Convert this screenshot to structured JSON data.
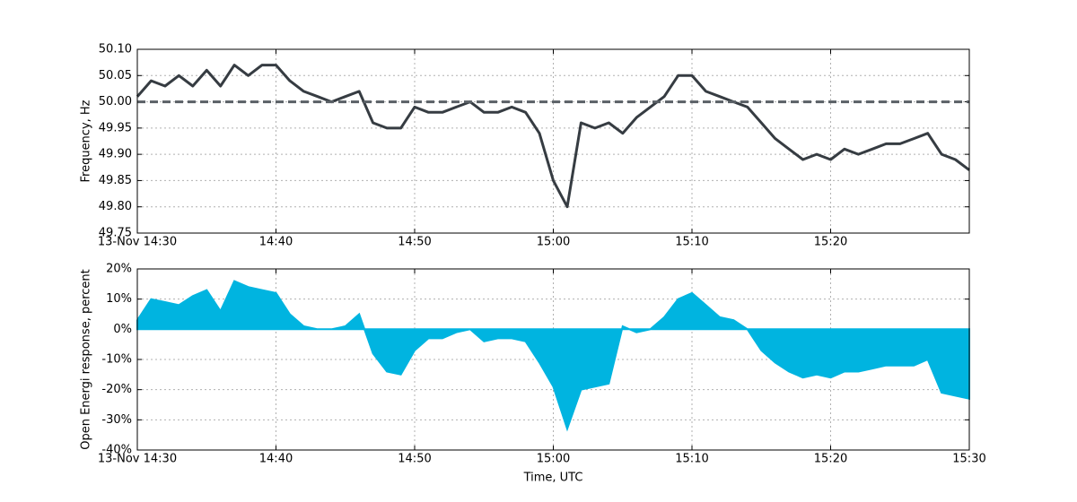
{
  "chart_data": [
    {
      "type": "line",
      "ylabel": "Frequency, Hz",
      "x": [
        "14:30",
        "14:31",
        "14:32",
        "14:33",
        "14:34",
        "14:35",
        "14:36",
        "14:37",
        "14:38",
        "14:39",
        "14:40",
        "14:41",
        "14:42",
        "14:43",
        "14:44",
        "14:45",
        "14:46",
        "14:47",
        "14:48",
        "14:49",
        "14:50",
        "14:51",
        "14:52",
        "14:53",
        "14:54",
        "14:55",
        "14:56",
        "14:57",
        "14:58",
        "14:59",
        "15:00",
        "15:01",
        "15:02",
        "15:03",
        "15:04",
        "15:05",
        "15:06",
        "15:07",
        "15:08",
        "15:09",
        "15:10",
        "15:11",
        "15:12",
        "15:13",
        "15:14",
        "15:15",
        "15:16",
        "15:17",
        "15:18",
        "15:19",
        "15:20",
        "15:21",
        "15:22",
        "15:23",
        "15:24",
        "15:25",
        "15:26",
        "15:27",
        "15:28",
        "15:29",
        "15:30"
      ],
      "series": [
        {
          "color": "#363c42",
          "values": [
            50.01,
            50.04,
            50.03,
            50.05,
            50.03,
            50.06,
            50.03,
            50.07,
            50.05,
            50.07,
            50.07,
            50.04,
            50.02,
            50.01,
            50.0,
            50.01,
            50.02,
            49.96,
            49.95,
            49.95,
            49.99,
            49.98,
            49.98,
            49.99,
            50.0,
            49.98,
            49.98,
            49.99,
            49.98,
            49.94,
            49.85,
            49.8,
            49.96,
            49.95,
            49.96,
            49.94,
            49.97,
            49.99,
            50.01,
            50.05,
            50.05,
            50.02,
            50.01,
            50.0,
            49.99,
            49.96,
            49.93,
            49.91,
            49.89,
            49.9,
            49.89,
            49.91,
            49.9,
            49.91,
            49.92,
            49.92,
            49.93,
            49.94,
            49.9,
            49.89,
            49.87
          ]
        }
      ],
      "reference_line": {
        "value": 50,
        "color": "#5a6066"
      },
      "xlim": [
        "14:30",
        "15:30"
      ],
      "xticks": [
        {
          "value": "14:30",
          "label": "13-Nov 14:30"
        },
        "14:40",
        "14:50",
        "15:00",
        "15:10",
        "15:20"
      ],
      "ylim": [
        49.75,
        50.1
      ],
      "yticks": [
        49.75,
        {
          "value": 49.8,
          "label": "49.80"
        },
        49.85,
        {
          "value": 49.9,
          "label": "49.90"
        },
        49.95,
        {
          "value": 50,
          "label": "50.00"
        },
        50.05,
        {
          "value": 50.1,
          "label": "50.10"
        }
      ],
      "grid": true
    },
    {
      "type": "area",
      "xlabel": "Time, UTC",
      "ylabel": "Open Energi response, percent",
      "x": [
        "14:30",
        "14:31",
        "14:32",
        "14:33",
        "14:34",
        "14:35",
        "14:36",
        "14:37",
        "14:38",
        "14:39",
        "14:40",
        "14:41",
        "14:42",
        "14:43",
        "14:44",
        "14:45",
        "14:46",
        "14:47",
        "14:48",
        "14:49",
        "14:50",
        "14:51",
        "14:52",
        "14:53",
        "14:54",
        "14:55",
        "14:56",
        "14:57",
        "14:58",
        "14:59",
        "15:00",
        "15:01",
        "15:02",
        "15:03",
        "15:04",
        "15:05",
        "15:06",
        "15:07",
        "15:08",
        "15:09",
        "15:10",
        "15:11",
        "15:12",
        "15:13",
        "15:14",
        "15:15",
        "15:16",
        "15:17",
        "15:18",
        "15:19",
        "15:20",
        "15:21",
        "15:22",
        "15:23",
        "15:24",
        "15:25",
        "15:26",
        "15:27",
        "15:28",
        "15:29",
        "15:30"
      ],
      "series": [
        {
          "color": "#00b4e0",
          "values": [
            3,
            10,
            9,
            8,
            11,
            13,
            6,
            16,
            14,
            13,
            12,
            5,
            1,
            0,
            0,
            1,
            5,
            -8,
            -14,
            -15,
            -7,
            -3,
            -3,
            -1,
            0,
            -4,
            -3,
            -3,
            -4,
            -11,
            -19,
            -33,
            -20,
            -19,
            -18,
            1,
            -1,
            0,
            4,
            10,
            12,
            8,
            4,
            3,
            0,
            -7,
            -11,
            -14,
            -16,
            -15,
            -16,
            -14,
            -14,
            -13,
            -12,
            -12,
            -12,
            -10,
            -21,
            -22,
            -23
          ]
        }
      ],
      "xlim": [
        "14:30",
        "15:30"
      ],
      "xticks": [
        {
          "value": "14:30",
          "label": "13-Nov 14:30"
        },
        "14:40",
        "14:50",
        "15:00",
        "15:10",
        "15:20",
        "15:30"
      ],
      "ylim": [
        -40,
        20
      ],
      "yticks": [
        {
          "value": -40,
          "label": "-40%"
        },
        {
          "value": -30,
          "label": "-30%"
        },
        {
          "value": -20,
          "label": "-20%"
        },
        {
          "value": -10,
          "label": "-10%"
        },
        {
          "value": 0,
          "label": "0%"
        },
        {
          "value": 10,
          "label": "10%"
        },
        {
          "value": 20,
          "label": "20%"
        }
      ],
      "grid": true
    }
  ]
}
